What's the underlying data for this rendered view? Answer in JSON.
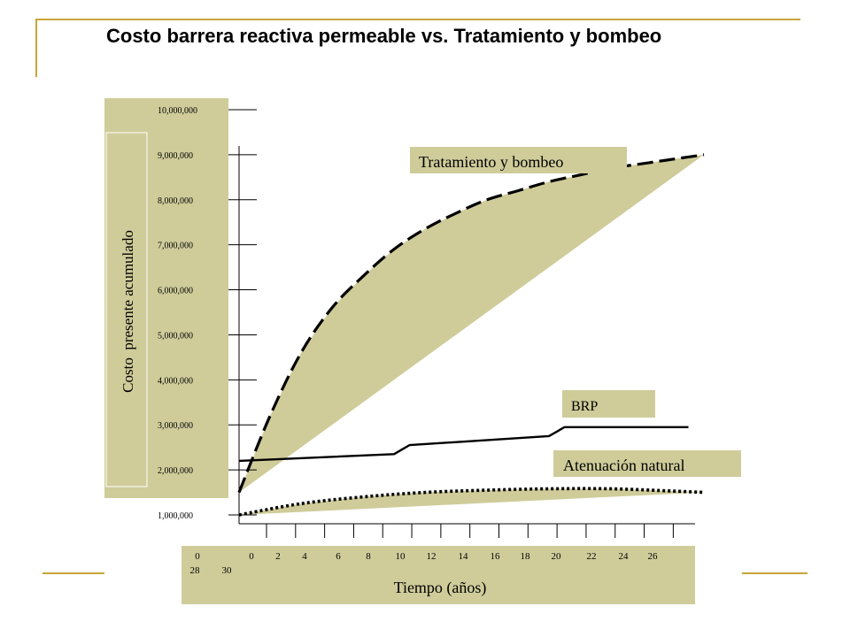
{
  "slide": {
    "title": "Costo barrera reactiva permeable vs. Tratamiento y bombeo"
  },
  "colors": {
    "panel": "#cfcc9a",
    "frame_gold": "#c8a53a",
    "line": "#000000",
    "background": "#ffffff"
  },
  "chart_data": {
    "type": "line",
    "title": "",
    "xlabel": "Tiempo (años)",
    "ylabel": "Costo  presente acumulado",
    "y_tick_labels": [
      "1,000,000",
      "2,000,000",
      "3,000,000",
      "4,000,000",
      "5,000,000",
      "6,000,000",
      "7,000,000",
      "8,000,000",
      "9,000,000",
      "10,000,000"
    ],
    "x_tick_labels_row1": [
      "0",
      "0",
      "2",
      "4",
      "6",
      "8",
      "10",
      "12",
      "14",
      "16",
      "18",
      "20",
      "22",
      "24",
      "26"
    ],
    "x_tick_labels_row2": [
      "28",
      "30"
    ],
    "xlim": [
      0,
      30
    ],
    "ylim": [
      1000000,
      10000000
    ],
    "grid": false,
    "series": [
      {
        "name": "Tratamiento y bombeo",
        "style": "dashed",
        "x": [
          0,
          2,
          4,
          6,
          8,
          10,
          12,
          14,
          16,
          18,
          20,
          22,
          24,
          26,
          28,
          30
        ],
        "y": [
          1500000,
          3200000,
          4600000,
          5600000,
          6300000,
          6900000,
          7350000,
          7700000,
          8000000,
          8200000,
          8400000,
          8550000,
          8700000,
          8800000,
          8900000,
          9000000
        ]
      },
      {
        "name": "BRP",
        "style": "solid",
        "x": [
          0,
          10,
          10.5,
          11,
          20,
          20.5,
          21,
          29
        ],
        "y": [
          2200000,
          2350000,
          2450000,
          2550000,
          2750000,
          2850000,
          2950000,
          2950000
        ]
      },
      {
        "name": "Atenuación natural",
        "style": "dotted",
        "x": [
          0,
          4,
          8,
          12,
          16,
          20,
          24,
          28,
          30
        ],
        "y": [
          1000000,
          1250000,
          1400000,
          1500000,
          1550000,
          1580000,
          1580000,
          1530000,
          1500000
        ]
      }
    ]
  }
}
